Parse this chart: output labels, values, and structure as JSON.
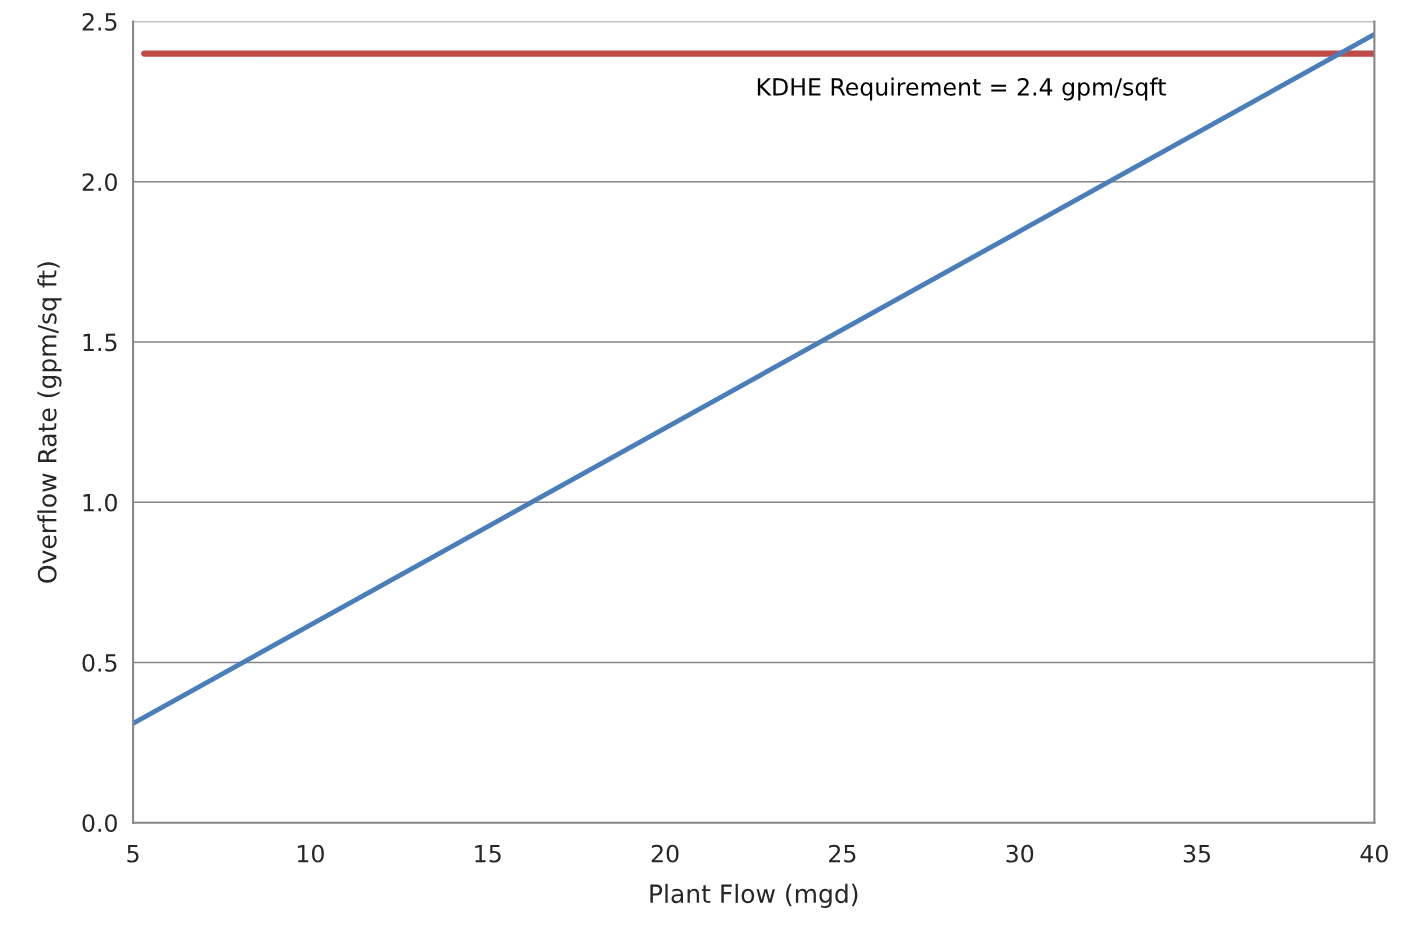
{
  "chart_data": {
    "type": "line",
    "xlabel": "Plant Flow (mgd)",
    "ylabel": "Overflow Rate (gpm/sq ft)",
    "series": [
      {
        "x": [
          5,
          40
        ],
        "values": [
          0.31,
          2.46
        ],
        "color": "#4a7ebb"
      }
    ],
    "ref_lines": [
      {
        "axis": "y",
        "value": 2.4,
        "label": "KDHE Requirement = 2.4 gpm/sqft",
        "color": "#be4b48",
        "line_style": "solid"
      }
    ],
    "xlim": [
      5,
      40
    ],
    "xticks": [
      5,
      10,
      15,
      20,
      25,
      30,
      35,
      40
    ],
    "ylim": [
      0,
      2.5
    ],
    "yticks": [
      {
        "value": 0,
        "label": "0.0"
      },
      {
        "value": 0.5,
        "label": "0.5"
      },
      {
        "value": 1.0,
        "label": "1.0"
      },
      {
        "value": 1.5,
        "label": "1.5"
      },
      {
        "value": 2.0,
        "label": "2.0"
      },
      {
        "value": 2.5,
        "label": "2.5"
      }
    ],
    "grid": "y",
    "marker": "none",
    "line_style": "solid"
  }
}
